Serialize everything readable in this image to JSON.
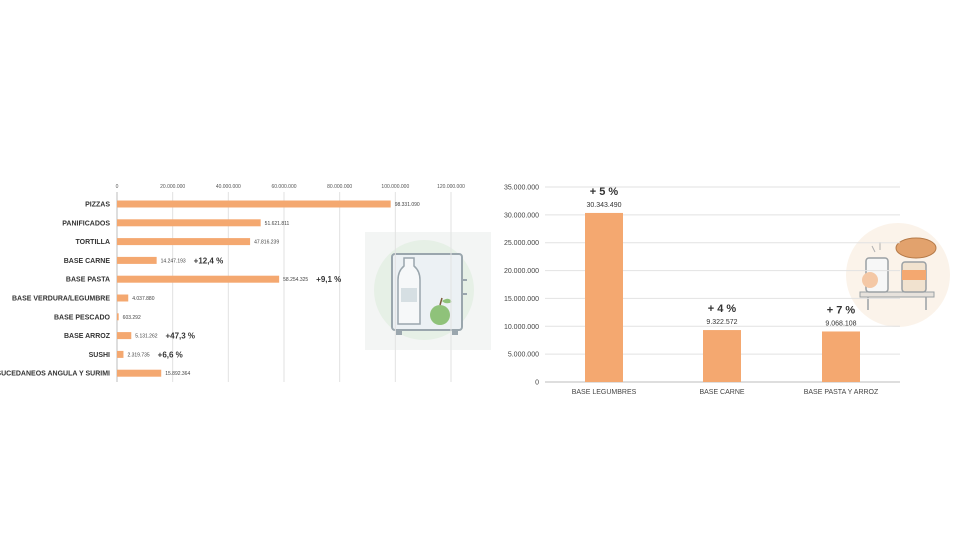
{
  "colors": {
    "bar": "#f4a870",
    "grid": "#e2e2e2",
    "axis": "#bdbdbd",
    "text": "#333333"
  },
  "chart_data": [
    {
      "type": "bar",
      "orientation": "horizontal",
      "categories": [
        "PIZZAS",
        "PANIFICADOS",
        "TORTILLA",
        "BASE CARNE",
        "BASE PASTA",
        "BASE VERDURA/LEGUMBRE",
        "BASE PESCADO",
        "BASE ARROZ",
        "SUSHI",
        "SUCEDANEOS ANGULA Y SURIMI"
      ],
      "values": [
        98331090,
        51621811,
        47816239,
        14247193,
        58254325,
        4037880,
        603292,
        5131262,
        2319735,
        15892364
      ],
      "value_labels": [
        "98.331.090",
        "51.621.811",
        "47.816.239",
        "14.247.193",
        "58.254.325",
        "4.037.880",
        "603.292",
        "5.131.262",
        "2.319.735",
        "15.892.364"
      ],
      "change_labels": [
        "",
        "",
        "",
        "+12,4 %",
        "+9,1 %",
        "",
        "",
        "+47,3 %",
        "+6,6 %",
        ""
      ],
      "xlim": [
        0,
        120000000
      ],
      "xticks": [
        0,
        20000000,
        40000000,
        60000000,
        80000000,
        100000000,
        120000000
      ],
      "xtick_labels": [
        "0",
        "20.000.000",
        "40.000.000",
        "60.000.000",
        "80.000.000",
        "100.000.000",
        "120.000.000"
      ],
      "xaxis_position": "top",
      "grid": true
    },
    {
      "type": "bar",
      "orientation": "vertical",
      "categories": [
        "BASE LEGUMBRES",
        "BASE CARNE",
        "BASE PASTA Y ARROZ"
      ],
      "values": [
        30343490,
        9322572,
        9068108
      ],
      "value_labels": [
        "30.343.490",
        "9.322.572",
        "9.068.108"
      ],
      "change_labels": [
        "+ 5 %",
        "+ 4 %",
        "+ 7 %"
      ],
      "ylim": [
        0,
        35000000
      ],
      "yticks": [
        0,
        5000000,
        10000000,
        15000000,
        20000000,
        25000000,
        30000000,
        35000000
      ],
      "ytick_labels": [
        "0",
        "5.000.000",
        "10.000.000",
        "15.000.000",
        "20.000.000",
        "25.000.000",
        "30.000.000",
        "35.000.000"
      ],
      "grid": true
    }
  ],
  "illustrations": {
    "left": "refrigerator-icon",
    "right": "pantry-icon"
  }
}
